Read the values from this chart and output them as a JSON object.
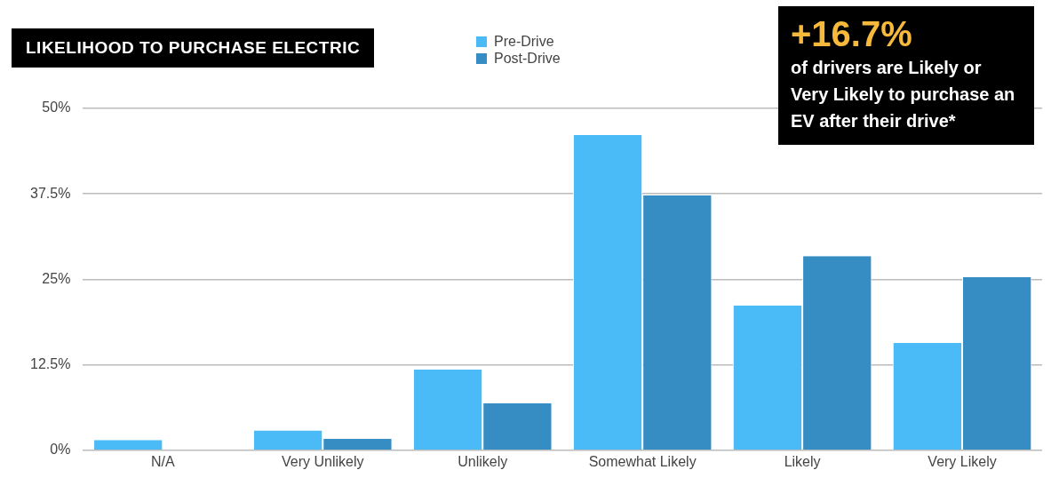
{
  "chart_data": {
    "type": "bar",
    "title": "LIKELIHOOD TO PURCHASE ELECTRIC",
    "categories": [
      "N/A",
      "Very Unlikely",
      "Unlikely",
      "Somewhat Likely",
      "Likely",
      "Very Likely"
    ],
    "series": [
      {
        "name": "Pre-Drive",
        "color": "#4abbf7",
        "values": [
          1.5,
          2.9,
          11.8,
          46.1,
          21.2,
          15.7
        ]
      },
      {
        "name": "Post-Drive",
        "color": "#358dc4",
        "values": [
          null,
          1.7,
          6.9,
          37.3,
          28.4,
          25.3
        ]
      }
    ],
    "ylim": [
      0,
      50
    ],
    "yticks": [
      {
        "value": 0,
        "label": "0%"
      },
      {
        "value": 12.5,
        "label": "12.5%"
      },
      {
        "value": 25,
        "label": "25%"
      },
      {
        "value": 37.5,
        "label": "37.5%"
      },
      {
        "value": 50,
        "label": "50%"
      }
    ],
    "grid": "y",
    "legend": "top",
    "annotations": [
      "+16.7%",
      "of drivers are Likely or Very Likely to purchase an EV after their drive*"
    ]
  }
}
